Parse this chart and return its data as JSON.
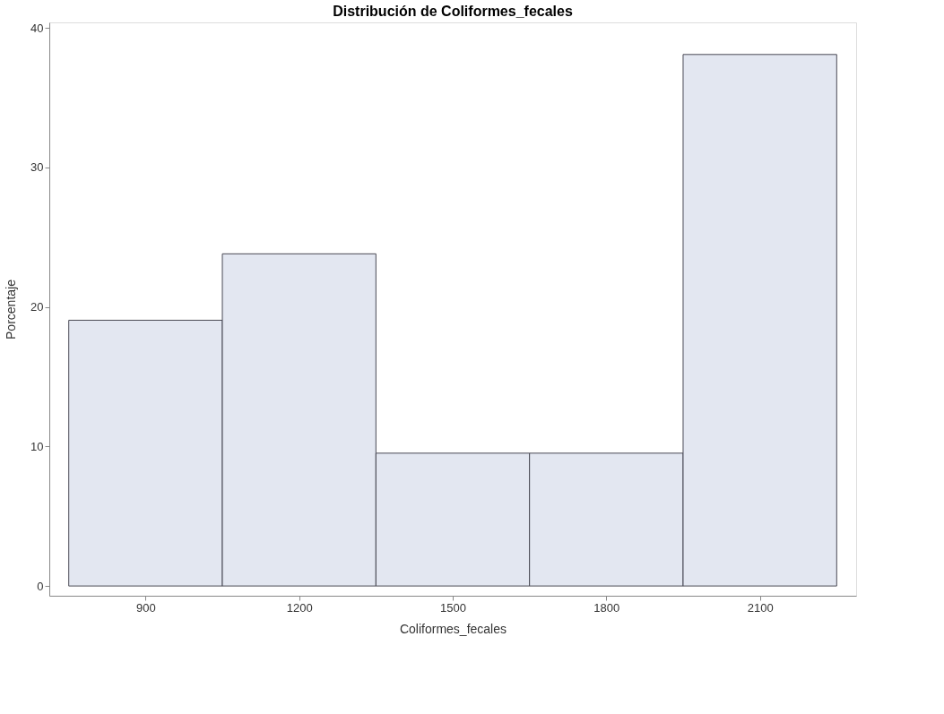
{
  "chart_data": {
    "type": "histogram",
    "title": "Distribución de Coliformes_fecales",
    "xlabel": "Coliformes_fecales",
    "ylabel": "Porcentaje",
    "bins": [
      750,
      1050,
      1350,
      1650,
      1950,
      2250
    ],
    "values": [
      19.05,
      23.81,
      9.52,
      9.52,
      38.1
    ],
    "color": "#e3e7f1",
    "xlim": [
      712,
      2288
    ],
    "xticks": [
      900,
      1200,
      1500,
      1800,
      2100
    ],
    "ylim": [
      -0.7,
      40.4
    ],
    "yticks": [
      0,
      10,
      20,
      30,
      40
    ],
    "grid": false
  }
}
